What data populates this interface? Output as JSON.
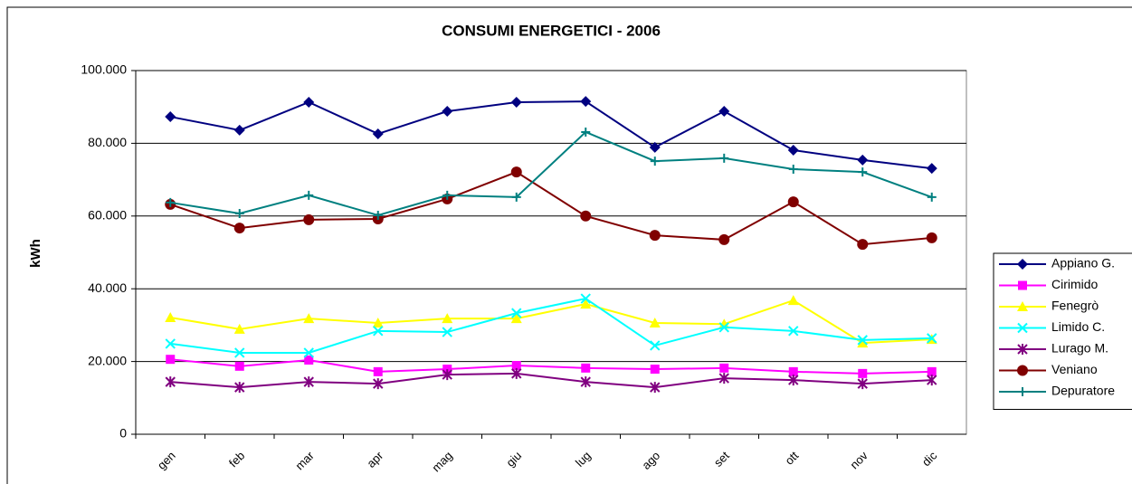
{
  "chart_data": {
    "type": "line",
    "title": "CONSUMI ENERGETICI - 2006",
    "y_label": "kWh",
    "categories": [
      "gen",
      "feb",
      "mar",
      "apr",
      "mag",
      "giu",
      "lug",
      "ago",
      "set",
      "ott",
      "nov",
      "dic"
    ],
    "ylim": [
      0,
      100000
    ],
    "yticks": [
      0,
      {
        "value": 20000,
        "label": "20.000"
      },
      {
        "value": 40000,
        "label": "40.000"
      },
      {
        "value": 60000,
        "label": "60.000"
      },
      {
        "value": 80000,
        "label": "80.000"
      },
      {
        "value": 100000,
        "label": "100.000"
      }
    ],
    "grid": true,
    "legend": "right",
    "series": [
      {
        "name": "Appiano G.",
        "color": "#000080",
        "marker": "diamond",
        "values": [
          87300,
          83600,
          91300,
          82600,
          88800,
          91300,
          91500,
          78900,
          88800,
          78100,
          75400,
          73100
        ]
      },
      {
        "name": "Cirimido",
        "color": "#ff00ff",
        "marker": "square",
        "values": [
          20600,
          18700,
          20400,
          17200,
          17900,
          18900,
          18200,
          17900,
          18200,
          17200,
          16700,
          17200
        ]
      },
      {
        "name": "Fenegrò",
        "color": "#ffff00",
        "marker": "triangle",
        "values": [
          32100,
          28900,
          31800,
          30600,
          31800,
          31800,
          35800,
          30600,
          30300,
          36800,
          25100,
          26100
        ]
      },
      {
        "name": "Limido C.",
        "color": "#00ffff",
        "marker": "x",
        "values": [
          24900,
          22400,
          22400,
          28400,
          28100,
          33300,
          37300,
          24400,
          29400,
          28400,
          25900,
          26400
        ]
      },
      {
        "name": "Lurago M.",
        "color": "#800080",
        "marker": "star",
        "values": [
          14400,
          12900,
          14400,
          13900,
          16400,
          16700,
          14400,
          12900,
          15400,
          14900,
          13900,
          14900
        ]
      },
      {
        "name": "Veniano",
        "color": "#800000",
        "marker": "circle",
        "values": [
          63200,
          56700,
          59000,
          59200,
          64700,
          72100,
          60000,
          54700,
          53500,
          63900,
          52200,
          54000
        ]
      },
      {
        "name": "Depuratore",
        "color": "#008080",
        "marker": "plus",
        "values": [
          63700,
          60700,
          65700,
          60200,
          65700,
          65200,
          83100,
          75100,
          75900,
          72900,
          72100,
          65200
        ]
      }
    ]
  }
}
